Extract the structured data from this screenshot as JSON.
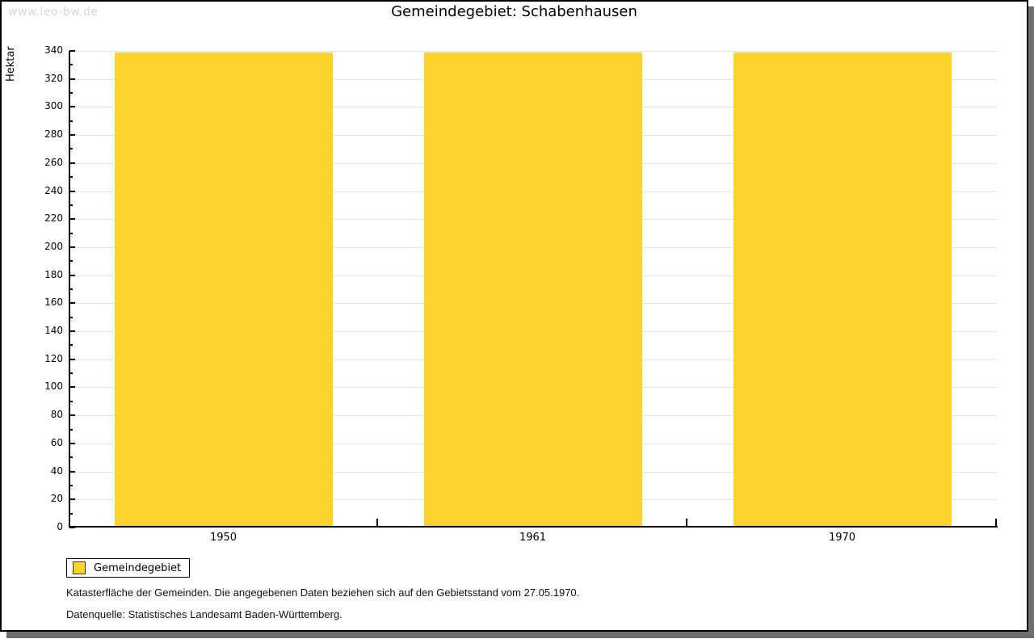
{
  "watermark": "www.leo-bw.de",
  "title": "Gemeindegebiet: Schabenhausen",
  "chart_data": {
    "type": "bar",
    "title": "Gemeindegebiet: Schabenhausen",
    "categories": [
      "1950",
      "1961",
      "1970"
    ],
    "series": [
      {
        "name": "Gemeindegebiet",
        "values": [
          339,
          339,
          339
        ],
        "color": "#fcd32d"
      }
    ],
    "xlabel": "",
    "ylabel": "Hektar",
    "ylim": [
      0,
      340
    ],
    "ytick_step": 20,
    "ytick_minor_step": 10,
    "grid": true,
    "legend_position": "bottom-left"
  },
  "legend": {
    "items": [
      {
        "label": "Gemeindegebiet",
        "color": "#fcd32d"
      }
    ]
  },
  "footnotes": [
    "Katasterfläche der Gemeinden. Die angegebenen Daten beziehen sich auf den Gebietsstand vom 27.05.1970.",
    "Datenquelle: Statistisches Landesamt Baden-Württemberg."
  ],
  "colors": {
    "bar": "#fcd32d",
    "grid": "#e3e3e3",
    "axis": "#000000",
    "watermark": "#d8d8d8",
    "frame_shadow": "#6e6e6e"
  }
}
